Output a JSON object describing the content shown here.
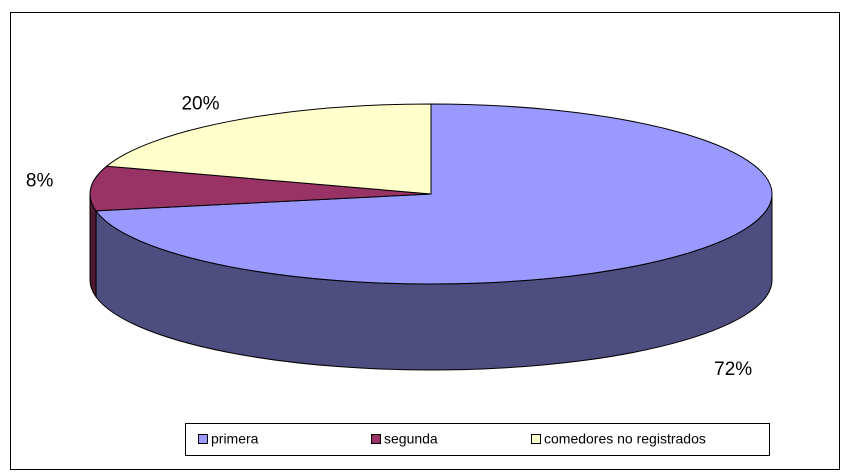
{
  "chart_data": {
    "type": "pie",
    "categories": [
      "primera",
      "segunda",
      "comedores no registrados"
    ],
    "values": [
      72,
      8,
      20
    ],
    "value_labels": [
      "72%",
      "8%",
      "20%"
    ],
    "colors": [
      "#9999ff",
      "#993366",
      "#ffffcc"
    ],
    "legend": "bottom"
  }
}
